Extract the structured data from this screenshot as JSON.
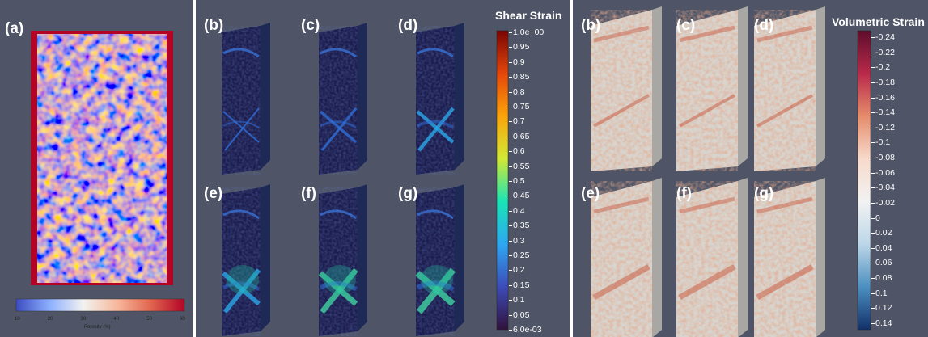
{
  "panel_a": {
    "label": "(a)",
    "colorbar": {
      "title": "Porosity (%)",
      "ticks": [
        "10",
        "20",
        "30",
        "40",
        "50",
        "60"
      ],
      "colors": [
        "#3b4cc0",
        "#8db0fe",
        "#f2f2f0",
        "#f7b89c",
        "#e0654f",
        "#b40426"
      ]
    }
  },
  "shear_strain": {
    "title": "Shear Strain",
    "labels": [
      "(b)",
      "(c)",
      "(d)",
      "(e)",
      "(f)",
      "(g)"
    ],
    "ticks": [
      "1.0e+00",
      "0.95",
      "0.9",
      "0.85",
      "0.8",
      "0.75",
      "0.7",
      "0.65",
      "0.6",
      "0.55",
      "0.5",
      "0.45",
      "0.4",
      "0.35",
      "0.3",
      "0.25",
      "0.2",
      "0.15",
      "0.1",
      "0.05",
      "6.0e-03"
    ],
    "colors": [
      "#7a0403",
      "#e4460a",
      "#fba40a",
      "#d2e935",
      "#1ae4b6",
      "#2ea7f2",
      "#3d4bb8",
      "#30123b"
    ]
  },
  "volumetric_strain": {
    "title": "Volumetric Strain",
    "labels": [
      "(b)",
      "(c)",
      "(d)",
      "(e)",
      "(f)",
      "(g)"
    ],
    "ticks": [
      "-0.24",
      "-0.22",
      "-0.2",
      "-0.18",
      "-0.16",
      "-0.14",
      "-0.12",
      "-0.1",
      "-0.08",
      "-0.06",
      "-0.04",
      "-0.02",
      "0",
      "0.02",
      "0.04",
      "0.06",
      "0.08",
      "0.1",
      "0.12",
      "0.14"
    ],
    "colors": [
      "#5e0d2b",
      "#b9294a",
      "#e58c6c",
      "#f7dacb",
      "#f2f2f2",
      "#bcd6e8",
      "#4c8fc0",
      "#12306a"
    ]
  }
}
